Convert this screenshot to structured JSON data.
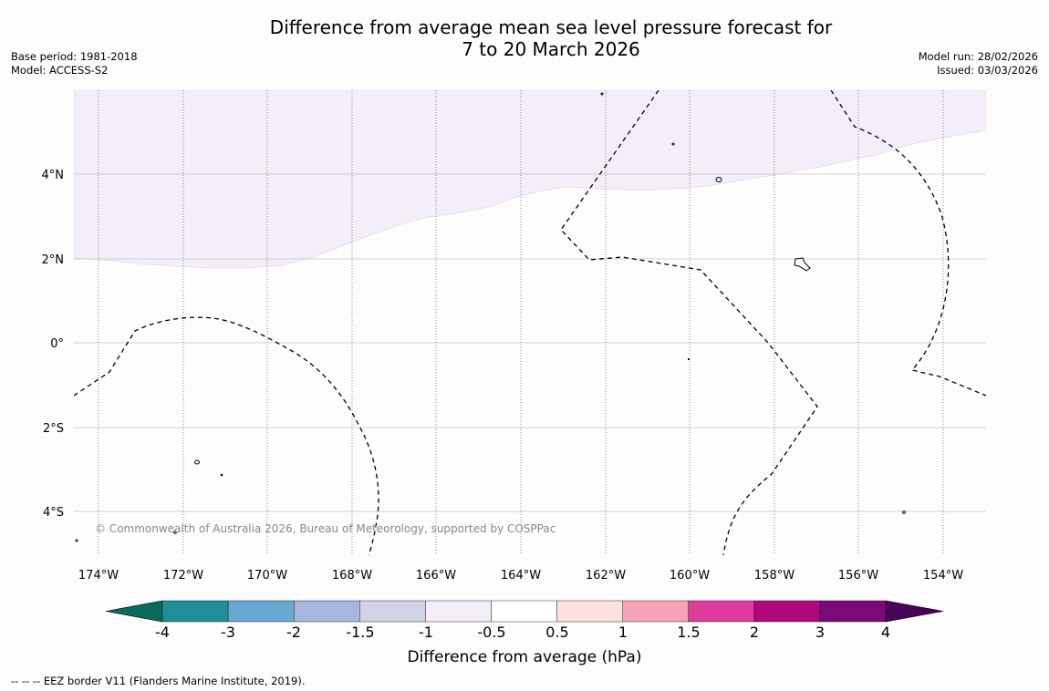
{
  "title_line1": "Difference from average mean sea level pressure forecast for",
  "title_line2": "7 to 20 March 2026",
  "base_period": "Base period: 1981-2018",
  "model": "Model: ACCESS-S2",
  "model_run": "Model run: 28/02/2026",
  "issued": "Issued: 03/03/2026",
  "attribution": "© Commonwealth of Australia 2026, Bureau of Meteorology, supported by COSPPac",
  "lat_labels": [
    "4°N",
    "2°N",
    "0°",
    "2°S",
    "4°S"
  ],
  "lon_labels": [
    "174°W",
    "172°W",
    "170°W",
    "168°W",
    "166°W",
    "164°W",
    "162°W",
    "160°W",
    "158°W",
    "156°W",
    "154°W"
  ],
  "colorbar": {
    "label": "Difference from average (hPa)",
    "ticks": [
      "-4",
      "-3",
      "-2",
      "-1.5",
      "-1",
      "-0.5",
      "0.5",
      "1",
      "1.5",
      "2",
      "3",
      "4"
    ],
    "colors": [
      "#0a6b5c",
      "#1f9096",
      "#6aa8d2",
      "#a8b8dc",
      "#d3d3e8",
      "#f3eef7",
      "#ffffff",
      "#fde0e0",
      "#f6a3b8",
      "#dd3c9d",
      "#b0087a",
      "#7b0a79",
      "#4a0257"
    ]
  },
  "field_colors": {
    "band_minus_0_5_to_minus_1": "#f3eef7"
  },
  "footnote": "--  --  -- EEZ border V11 (Flanders Marine Institute, 2019)."
}
